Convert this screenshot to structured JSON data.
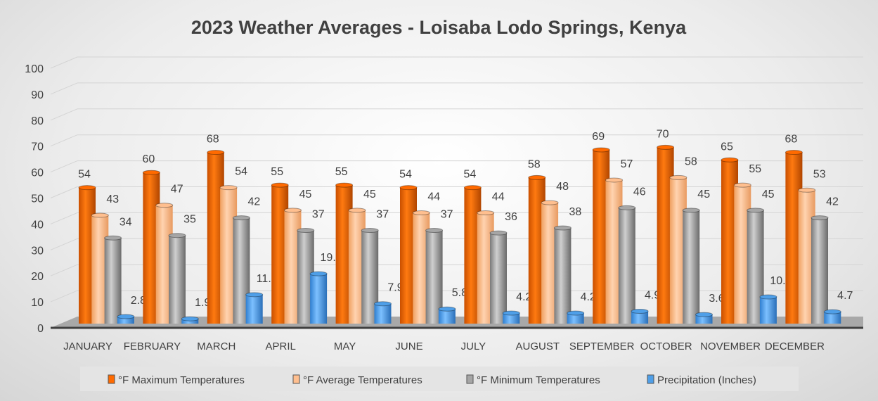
{
  "chart_data": {
    "type": "bar",
    "style": "3d-cylinder-clustered",
    "title": "2023 Weather Averages - Loisaba Lodo Springs, Kenya",
    "xlabel": "",
    "ylabel": "",
    "ylim": [
      0,
      100
    ],
    "yticks": [
      0,
      10,
      20,
      30,
      40,
      50,
      60,
      70,
      80,
      90,
      100
    ],
    "grid": true,
    "legend_placement": "bottom",
    "categories": [
      "JANUARY",
      "FEBRUARY",
      "MARCH",
      "APRIL",
      "MAY",
      "JUNE",
      "JULY",
      "AUGUST",
      "SEPTEMBER",
      "OCTOBER",
      "NOVEMBER",
      "DECEMBER"
    ],
    "series": [
      {
        "name": "°F Maximum Temperatures",
        "color": "#ff6a00",
        "values": [
          54,
          60,
          68,
          55,
          55,
          54,
          54,
          58,
          69,
          70,
          65,
          68
        ]
      },
      {
        "name": "°F Average Temperatures",
        "color": "#ffbf8f",
        "values": [
          43,
          47,
          54,
          45,
          45,
          44,
          44,
          48,
          57,
          58,
          55,
          53
        ]
      },
      {
        "name": "°F Minimum Temperatures",
        "color": "#a6a6a6",
        "values": [
          34,
          35,
          42,
          37,
          37,
          37,
          36,
          38,
          46,
          45,
          45,
          42
        ]
      },
      {
        "name": "Precipitation (Inches)",
        "color": "#4f9fe8",
        "values": [
          2.8,
          1.9,
          11.5,
          19.8,
          7.9,
          5.8,
          4.2,
          4.2,
          4.9,
          3.6,
          10.6,
          4.7
        ]
      }
    ]
  }
}
